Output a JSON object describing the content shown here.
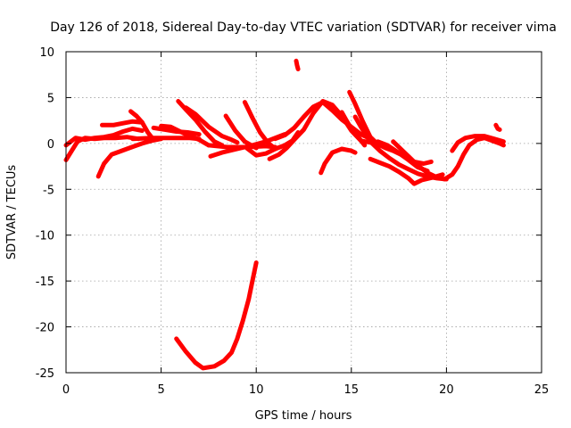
{
  "chart_data": {
    "type": "scatter",
    "title": "Day 126 of 2018, Sidereal Day-to-day VTEC variation (SDTVAR) for receiver vima",
    "xlabel": "GPS time / hours",
    "ylabel": "SDTVAR / TECUs",
    "xlim": [
      0,
      25
    ],
    "ylim": [
      -25,
      10
    ],
    "xticks": [
      0,
      5,
      10,
      15,
      20,
      25
    ],
    "yticks": [
      -25,
      -20,
      -15,
      -10,
      -5,
      0,
      5,
      10
    ],
    "grid": true,
    "color": "#ff0000",
    "series": [
      {
        "name": "s1",
        "points": [
          [
            0.0,
            -1.8
          ],
          [
            0.3,
            -0.8
          ],
          [
            0.6,
            0.2
          ],
          [
            1.0,
            0.6
          ],
          [
            1.5,
            0.5
          ],
          [
            2.0,
            0.6
          ],
          [
            2.6,
            0.6
          ],
          [
            3.2,
            0.7
          ],
          [
            3.8,
            0.5
          ]
        ]
      },
      {
        "name": "s2",
        "points": [
          [
            0.0,
            -0.2
          ],
          [
            0.5,
            0.6
          ],
          [
            1.0,
            0.4
          ],
          [
            1.5,
            0.6
          ],
          [
            2.0,
            0.7
          ],
          [
            2.5,
            0.9
          ],
          [
            3.0,
            1.3
          ],
          [
            3.5,
            1.6
          ],
          [
            4.0,
            1.4
          ]
        ]
      },
      {
        "name": "s3",
        "points": [
          [
            1.7,
            -3.6
          ],
          [
            2.0,
            -2.2
          ],
          [
            2.4,
            -1.2
          ],
          [
            2.8,
            -0.9
          ],
          [
            3.2,
            -0.6
          ],
          [
            3.6,
            -0.3
          ],
          [
            4.0,
            0.0
          ],
          [
            4.5,
            0.3
          ],
          [
            5.0,
            0.5
          ]
        ]
      },
      {
        "name": "s4",
        "points": [
          [
            1.9,
            2.0
          ],
          [
            2.5,
            2.0
          ],
          [
            3.0,
            2.2
          ],
          [
            3.5,
            2.4
          ],
          [
            4.0,
            2.3
          ]
        ]
      },
      {
        "name": "s5",
        "points": [
          [
            3.4,
            3.5
          ],
          [
            3.7,
            3.0
          ],
          [
            4.0,
            2.3
          ],
          [
            4.3,
            1.2
          ],
          [
            4.6,
            0.4
          ]
        ]
      },
      {
        "name": "s6",
        "points": [
          [
            3.5,
            0.5
          ],
          [
            4.5,
            0.6
          ],
          [
            5.5,
            0.6
          ],
          [
            6.5,
            0.6
          ],
          [
            7.0,
            0.5
          ]
        ]
      },
      {
        "name": "s7",
        "points": [
          [
            4.6,
            1.7
          ],
          [
            5.2,
            1.5
          ],
          [
            5.8,
            1.3
          ],
          [
            6.4,
            1.2
          ],
          [
            7.0,
            1.0
          ]
        ]
      },
      {
        "name": "s8",
        "points": [
          [
            5.0,
            1.9
          ],
          [
            5.5,
            1.8
          ],
          [
            6.0,
            1.3
          ],
          [
            6.5,
            0.8
          ],
          [
            7.0,
            0.4
          ],
          [
            7.5,
            -0.2
          ]
        ]
      },
      {
        "name": "s9",
        "points": [
          [
            5.9,
            4.6
          ],
          [
            6.3,
            3.7
          ],
          [
            6.8,
            2.6
          ],
          [
            7.3,
            1.3
          ],
          [
            7.8,
            0.2
          ],
          [
            8.2,
            -0.2
          ]
        ]
      },
      {
        "name": "s10",
        "points": [
          [
            6.3,
            3.9
          ],
          [
            6.8,
            3.2
          ],
          [
            7.5,
            1.8
          ],
          [
            8.2,
            0.8
          ],
          [
            8.7,
            0.4
          ],
          [
            9.0,
            0.1
          ]
        ]
      },
      {
        "name": "s11",
        "points": [
          [
            8.4,
            3.0
          ],
          [
            8.9,
            1.4
          ],
          [
            9.4,
            0.2
          ],
          [
            10.0,
            -0.5
          ]
        ]
      },
      {
        "name": "s12",
        "points": [
          [
            9.4,
            4.5
          ],
          [
            9.8,
            2.8
          ],
          [
            10.2,
            1.2
          ],
          [
            10.6,
            0.1
          ],
          [
            11.0,
            -0.6
          ]
        ]
      },
      {
        "name": "s13",
        "points": [
          [
            7.5,
            -0.2
          ],
          [
            8.5,
            -0.4
          ],
          [
            9.5,
            -0.4
          ],
          [
            10.5,
            -0.3
          ],
          [
            11.0,
            -0.4
          ]
        ]
      },
      {
        "name": "s14",
        "points": [
          [
            7.6,
            -1.4
          ],
          [
            8.2,
            -1.0
          ],
          [
            9.0,
            -0.6
          ],
          [
            9.8,
            -0.2
          ],
          [
            10.5,
            0.2
          ],
          [
            11.0,
            0.6
          ],
          [
            11.5,
            1.0
          ]
        ]
      },
      {
        "name": "s15",
        "points": [
          [
            9.5,
            -0.5
          ],
          [
            10.0,
            -1.3
          ],
          [
            10.5,
            -1.1
          ],
          [
            11.0,
            -0.6
          ],
          [
            11.5,
            -0.2
          ],
          [
            11.9,
            0.3
          ],
          [
            12.2,
            1.2
          ]
        ]
      },
      {
        "name": "s16",
        "points": [
          [
            10.7,
            -1.7
          ],
          [
            11.2,
            -1.2
          ],
          [
            11.6,
            -0.5
          ],
          [
            12.0,
            0.4
          ],
          [
            12.5,
            1.5
          ],
          [
            13.0,
            3.3
          ],
          [
            13.5,
            4.6
          ],
          [
            14.0,
            4.2
          ],
          [
            14.5,
            3.0
          ],
          [
            15.0,
            1.4
          ],
          [
            15.5,
            0.3
          ],
          [
            16.0,
            0.1
          ]
        ]
      },
      {
        "name": "s17",
        "points": [
          [
            11.0,
            0.5
          ],
          [
            11.5,
            0.9
          ],
          [
            12.0,
            1.7
          ],
          [
            12.5,
            2.9
          ],
          [
            13.0,
            4.0
          ],
          [
            13.5,
            4.5
          ],
          [
            14.0,
            3.6
          ],
          [
            14.5,
            2.6
          ],
          [
            15.0,
            1.8
          ],
          [
            15.5,
            1.0
          ],
          [
            16.0,
            0.5
          ]
        ]
      },
      {
        "name": "s18",
        "points": [
          [
            12.1,
            9.0
          ],
          [
            12.15,
            8.5
          ],
          [
            12.2,
            8.1
          ]
        ]
      },
      {
        "name": "s19",
        "points": [
          [
            13.4,
            -3.2
          ],
          [
            13.6,
            -2.2
          ],
          [
            14.0,
            -1.0
          ],
          [
            14.5,
            -0.6
          ],
          [
            15.0,
            -0.8
          ],
          [
            15.2,
            -1.0
          ]
        ]
      },
      {
        "name": "s20",
        "points": [
          [
            14.5,
            3.4
          ],
          [
            14.8,
            2.3
          ],
          [
            15.1,
            1.3
          ],
          [
            15.4,
            0.6
          ],
          [
            15.7,
            -0.2
          ]
        ]
      },
      {
        "name": "s21",
        "points": [
          [
            14.9,
            5.6
          ],
          [
            15.2,
            4.3
          ],
          [
            15.6,
            2.4
          ],
          [
            16.0,
            0.7
          ],
          [
            16.4,
            -0.1
          ],
          [
            16.8,
            -0.5
          ],
          [
            17.2,
            -0.8
          ],
          [
            17.6,
            -1.2
          ],
          [
            18.0,
            -1.8
          ],
          [
            18.5,
            -2.6
          ],
          [
            19.0,
            -3.0
          ]
        ]
      },
      {
        "name": "s22",
        "points": [
          [
            15.2,
            2.9
          ],
          [
            15.5,
            1.8
          ],
          [
            16.0,
            0.2
          ],
          [
            16.5,
            -0.8
          ],
          [
            17.0,
            -1.6
          ],
          [
            17.5,
            -2.3
          ],
          [
            18.0,
            -2.8
          ],
          [
            18.5,
            -3.3
          ],
          [
            19.0,
            -3.6
          ],
          [
            19.5,
            -3.8
          ],
          [
            20.0,
            -3.9
          ]
        ]
      },
      {
        "name": "s23",
        "points": [
          [
            16.0,
            -1.7
          ],
          [
            16.5,
            -2.1
          ],
          [
            17.0,
            -2.5
          ],
          [
            17.5,
            -3.1
          ],
          [
            18.0,
            -3.8
          ],
          [
            18.3,
            -4.4
          ],
          [
            18.7,
            -4.0
          ],
          [
            19.3,
            -3.7
          ],
          [
            19.8,
            -3.4
          ]
        ]
      },
      {
        "name": "s24",
        "points": [
          [
            16.4,
            0.2
          ],
          [
            16.9,
            -0.2
          ],
          [
            17.4,
            -0.9
          ],
          [
            17.9,
            -1.6
          ],
          [
            18.3,
            -2.0
          ],
          [
            18.8,
            -2.2
          ],
          [
            19.2,
            -2.0
          ]
        ]
      },
      {
        "name": "s25",
        "points": [
          [
            17.2,
            0.2
          ],
          [
            17.6,
            -0.6
          ],
          [
            18.0,
            -1.4
          ],
          [
            18.5,
            -2.4
          ],
          [
            19.0,
            -3.2
          ],
          [
            19.5,
            -3.7
          ],
          [
            19.9,
            -3.9
          ],
          [
            20.3,
            -3.4
          ],
          [
            20.6,
            -2.5
          ],
          [
            20.9,
            -1.2
          ],
          [
            21.2,
            -0.2
          ],
          [
            21.6,
            0.4
          ],
          [
            22.0,
            0.6
          ],
          [
            22.4,
            0.3
          ],
          [
            22.8,
            0.0
          ],
          [
            23.0,
            -0.2
          ]
        ]
      },
      {
        "name": "s26",
        "points": [
          [
            20.3,
            -0.8
          ],
          [
            20.6,
            0.1
          ],
          [
            21.0,
            0.6
          ],
          [
            21.5,
            0.8
          ],
          [
            22.0,
            0.8
          ],
          [
            22.5,
            0.5
          ],
          [
            23.0,
            0.2
          ]
        ]
      },
      {
        "name": "s27",
        "points": [
          [
            22.6,
            2.0
          ],
          [
            22.7,
            1.6
          ],
          [
            22.8,
            1.5
          ]
        ]
      },
      {
        "name": "s28",
        "points": [
          [
            5.8,
            -21.3
          ],
          [
            6.3,
            -22.7
          ],
          [
            6.8,
            -23.9
          ],
          [
            7.2,
            -24.5
          ],
          [
            7.8,
            -24.3
          ],
          [
            8.3,
            -23.7
          ],
          [
            8.7,
            -22.8
          ],
          [
            9.0,
            -21.3
          ],
          [
            9.3,
            -19.3
          ],
          [
            9.6,
            -17.0
          ],
          [
            9.8,
            -15.0
          ],
          [
            10.0,
            -13.0
          ]
        ]
      }
    ]
  }
}
